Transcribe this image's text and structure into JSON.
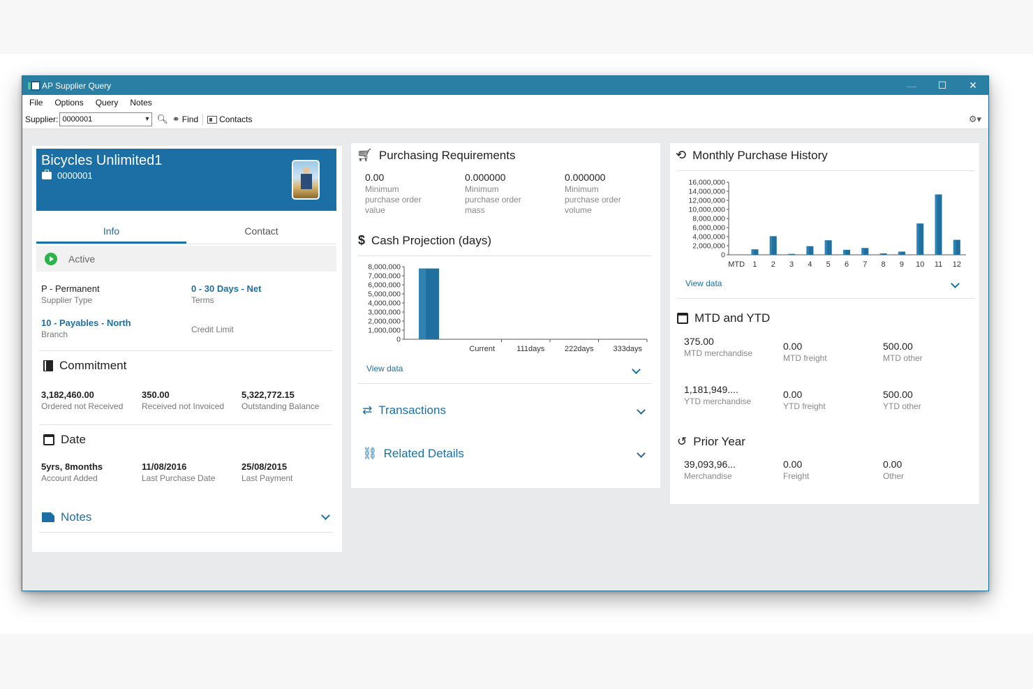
{
  "window": {
    "title": "AP Supplier Query"
  },
  "menu": [
    "File",
    "Options",
    "Query",
    "Notes"
  ],
  "toolbar": {
    "supplier_label": "Supplier:",
    "supplier_value": "0000001",
    "find_label": "Find",
    "contacts_label": "Contacts"
  },
  "supplier": {
    "name": "Bicycles Unlimited1",
    "code": "0000001"
  },
  "tabs": {
    "info": "Info",
    "contact": "Contact"
  },
  "status": "Active",
  "info": {
    "supplier_type_value": "P - Permanent",
    "supplier_type_label": "Supplier Type",
    "terms_value": "0 - 30 Days - Net",
    "terms_label": "Terms",
    "branch_value": "10 - Payables - North",
    "branch_label": "Branch",
    "credit_limit_label": "Credit Limit"
  },
  "commitment": {
    "title": "Commitment",
    "ordered_value": "3,182,460.00",
    "ordered_label": "Ordered not Received",
    "received_value": "350.00",
    "received_label": "Received not Invoiced",
    "outstanding_value": "5,322,772.15",
    "outstanding_label": "Outstanding Balance"
  },
  "date": {
    "title": "Date",
    "added_value": "5yrs, 8months",
    "added_label": "Account Added",
    "purchase_value": "11/08/2016",
    "purchase_label": "Last Purchase Date",
    "payment_value": "25/08/2015",
    "payment_label": "Last Payment"
  },
  "notes": {
    "title": "Notes"
  },
  "purchasing": {
    "title": "Purchasing Requirements",
    "items": [
      {
        "value": "0.00",
        "label": "Minimum purchase order value"
      },
      {
        "value": "0.000000",
        "label": "Minimum purchase order mass"
      },
      {
        "value": "0.000000",
        "label": "Minimum purchase order volume"
      }
    ]
  },
  "cash": {
    "title": "Cash Projection (days)",
    "view_data": "View data"
  },
  "transactions": {
    "title": "Transactions"
  },
  "related": {
    "title": "Related Details"
  },
  "monthly": {
    "title": "Monthly Purchase History",
    "view_data": "View data"
  },
  "mtd_ytd": {
    "title": "MTD and YTD",
    "mtd_merch_value": "375.00",
    "mtd_merch_label": "MTD merchandise",
    "mtd_freight_value": "0.00",
    "mtd_freight_label": "MTD freight",
    "mtd_other_value": "500.00",
    "mtd_other_label": "MTD other",
    "ytd_merch_value": "1,181,949....",
    "ytd_merch_label": "YTD merchandise",
    "ytd_freight_value": "0.00",
    "ytd_freight_label": "YTD freight",
    "ytd_other_value": "500.00",
    "ytd_other_label": "YTD other"
  },
  "prior_year": {
    "title": "Prior Year",
    "merch_value": "39,093,96...",
    "merch_label": "Merchandise",
    "freight_value": "0.00",
    "freight_label": "Freight",
    "other_value": "0.00",
    "other_label": "Other"
  },
  "colors": {
    "titlebar": "#2a7fa4",
    "accent": "#1c6fa4",
    "bar": "#1f6f9f",
    "active": "#2db34a"
  },
  "chart_data": [
    {
      "type": "bar",
      "name": "cash-projection",
      "categories": [
        "Current",
        "111days",
        "222days",
        "333days"
      ],
      "values": [
        7800000,
        0,
        0,
        0
      ],
      "ylim": [
        0,
        8000000
      ],
      "yticks": [
        "8,000,000",
        "7,000,000",
        "6,000,000",
        "5,000,000",
        "4,000,000",
        "3,000,000",
        "2,000,000",
        "1,000,000",
        "0"
      ],
      "xlabel": "",
      "ylabel": ""
    },
    {
      "type": "bar",
      "name": "monthly-purchase-history",
      "categories": [
        "MTD",
        "1",
        "2",
        "3",
        "4",
        "5",
        "6",
        "7",
        "8",
        "9",
        "10",
        "11",
        "12"
      ],
      "values": [
        0,
        1200000,
        4100000,
        200000,
        1900000,
        3200000,
        1100000,
        1500000,
        300000,
        700000,
        6900000,
        13300000,
        3300000
      ],
      "ylim": [
        0,
        16000000
      ],
      "yticks": [
        "16,000,000",
        "14,000,000",
        "12,000,000",
        "10,000,000",
        "8,000,000",
        "6,000,000",
        "4,000,000",
        "2,000,000",
        "0"
      ],
      "xlabel": "",
      "ylabel": ""
    }
  ]
}
